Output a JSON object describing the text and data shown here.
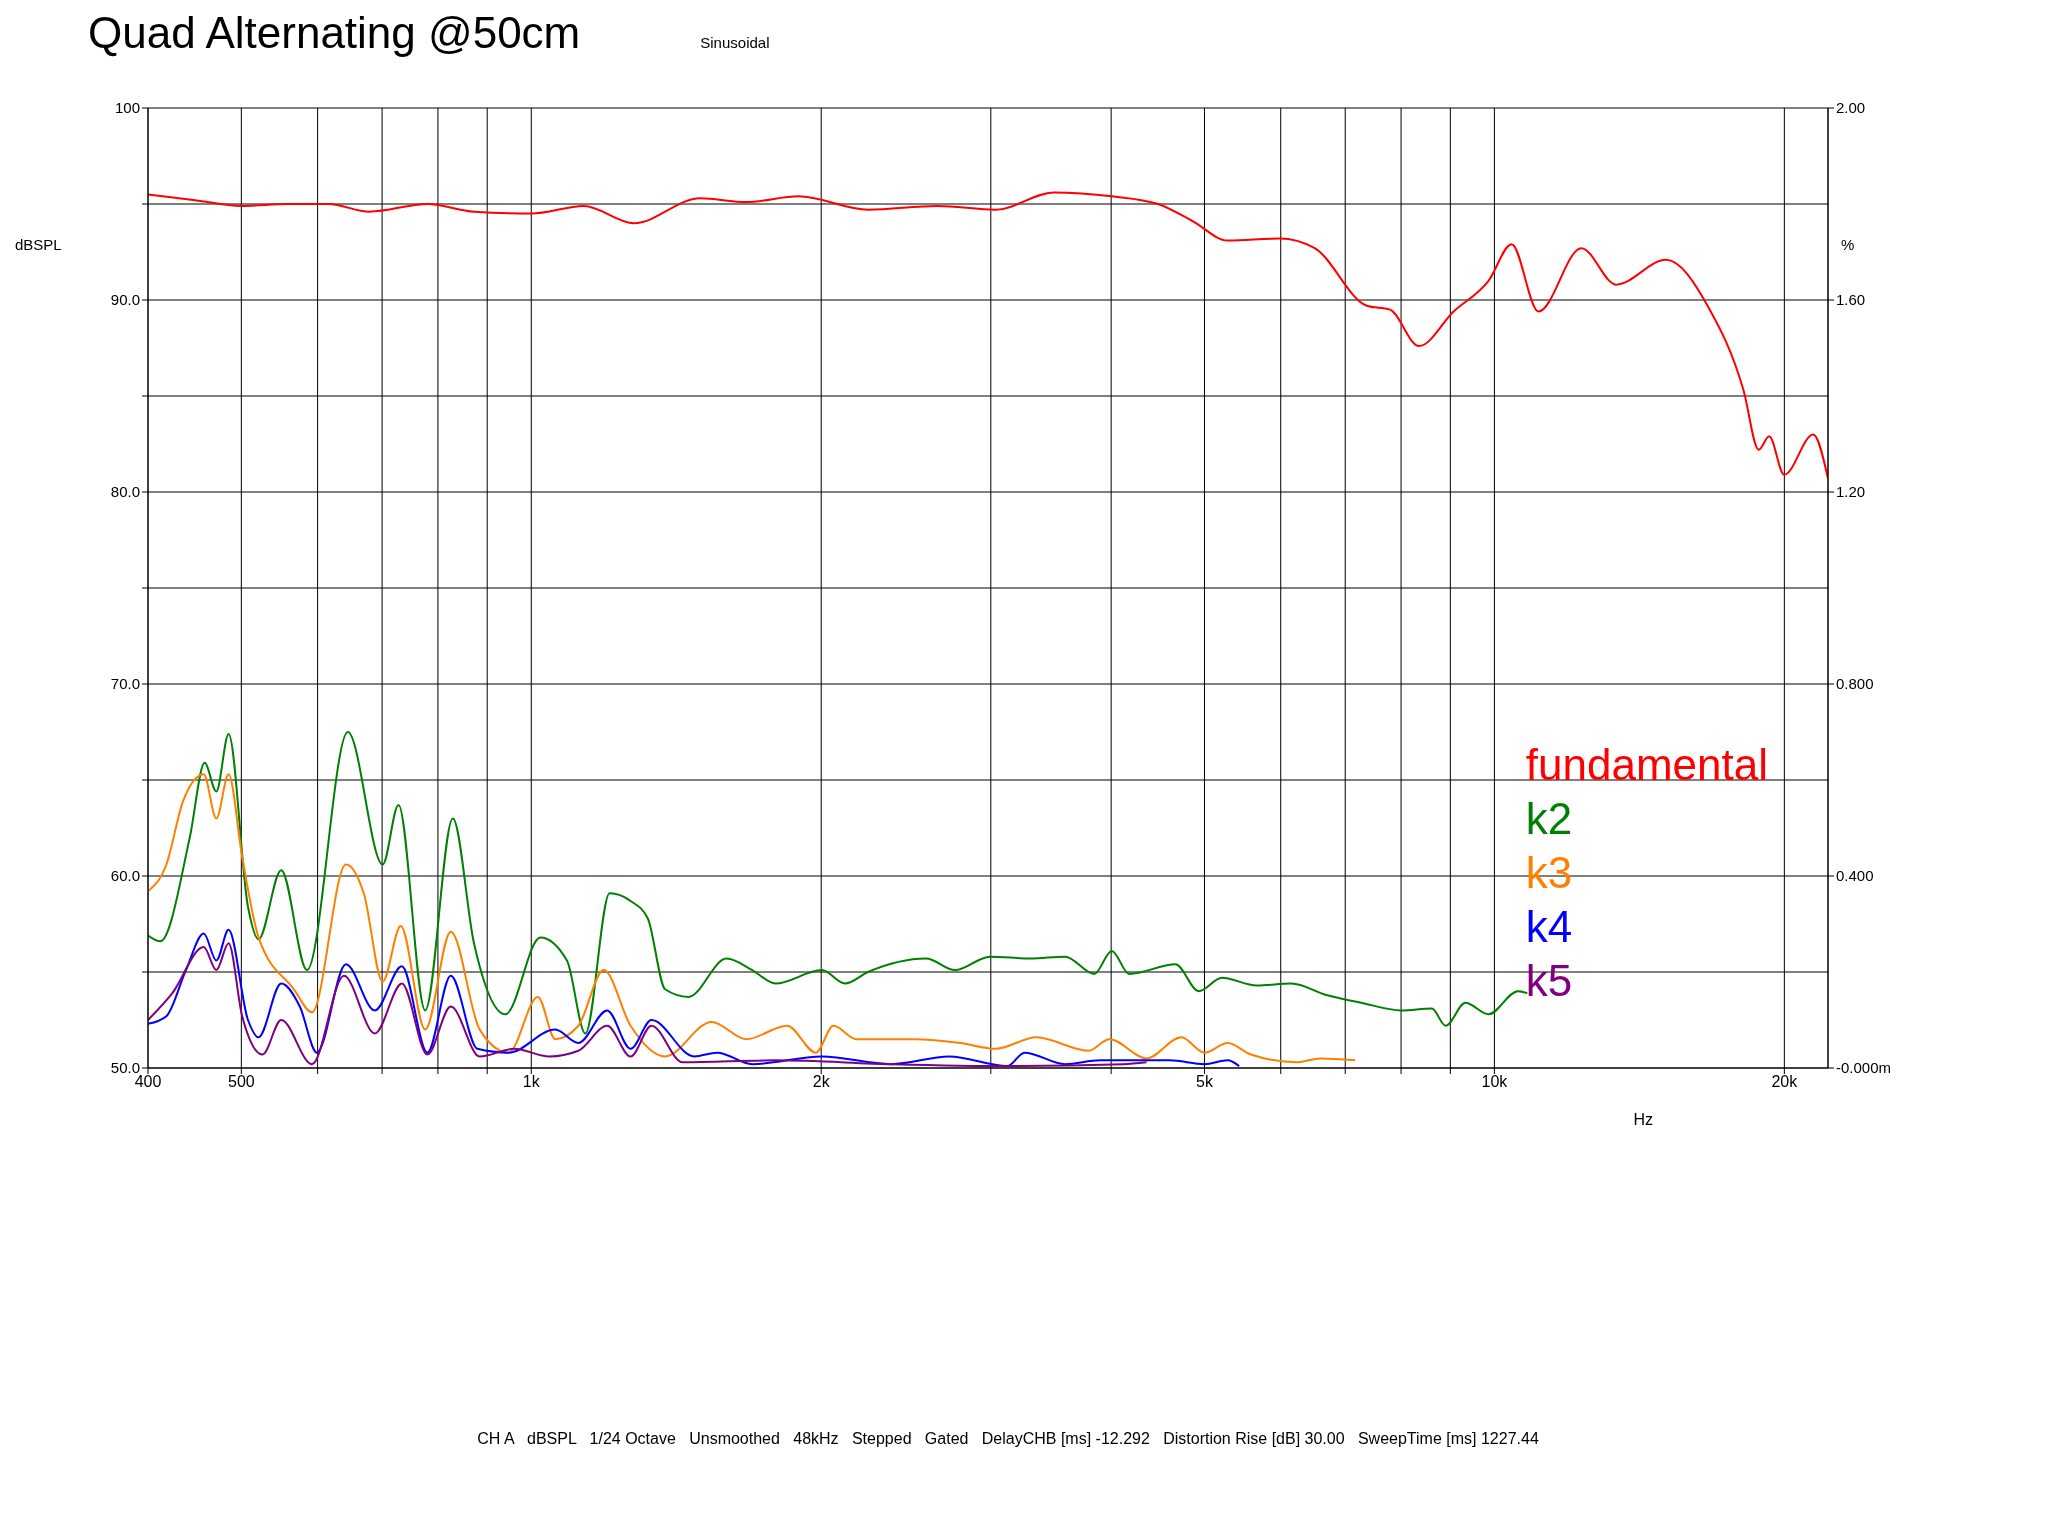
{
  "chart_data": {
    "type": "line",
    "title": "Quad Alternating @50cm",
    "xlabel": "Hz",
    "ylabel": "dBSPL",
    "y2label": "%",
    "annotations": [
      "Sinusoidal",
      "CH A   dBSPL   1/24 Octave   Unsmoothed   48kHz   Stepped   Gated   DelayCHB [ms] -12.292   Distortion Rise [dB] 30.00   SweepTime [ms] 1227.44"
    ],
    "log": "x",
    "grid": true,
    "legend": "right",
    "xlim": [
      400,
      22200
    ],
    "xticks": [
      400,
      500,
      {
        "value": 600,
        "label": null
      },
      {
        "value": 700,
        "label": null
      },
      {
        "value": 800,
        "label": null
      },
      {
        "value": 900,
        "label": null
      },
      {
        "value": 1000,
        "label": "1k"
      },
      {
        "value": 2000,
        "label": "2k"
      },
      {
        "value": 3000,
        "label": null
      },
      {
        "value": 4000,
        "label": null
      },
      {
        "value": 5000,
        "label": "5k"
      },
      {
        "value": 6000,
        "label": null
      },
      {
        "value": 7000,
        "label": null
      },
      {
        "value": 8000,
        "label": null
      },
      {
        "value": 9000,
        "label": null
      },
      {
        "value": 10000,
        "label": "10k"
      },
      {
        "value": 20000,
        "label": "20k"
      }
    ],
    "ylim": [
      50,
      100
    ],
    "yticks": [
      {
        "value": 50,
        "label": "50.0"
      },
      {
        "value": 55,
        "label": null
      },
      {
        "value": 60,
        "label": "60.0"
      },
      {
        "value": 65,
        "label": null
      },
      {
        "value": 70,
        "label": "70.0"
      },
      {
        "value": 75,
        "label": null
      },
      {
        "value": 80,
        "label": "80.0"
      },
      {
        "value": 85,
        "label": null
      },
      {
        "value": 90,
        "label": "90.0"
      },
      {
        "value": 95,
        "label": null
      },
      100
    ],
    "y2lim": [
      0,
      2
    ],
    "y2ticks": [
      {
        "value": 0,
        "label": "-0.000m"
      },
      {
        "value": 0.4,
        "label": "0.400"
      },
      {
        "value": 0.8,
        "label": "0.800"
      },
      {
        "value": 1.2,
        "label": "1.20"
      },
      {
        "value": 1.6,
        "label": "1.60"
      },
      {
        "value": 2,
        "label": "2.00"
      }
    ],
    "series": [
      {
        "name": "fundamental",
        "color": "#ff0000",
        "x": [
          400,
          448,
          500,
          559,
          616,
          679,
          780,
          872,
          1000,
          1134,
          1278,
          1497,
          1672,
          1895,
          2238,
          2642,
          3035,
          3487,
          4006,
          4475,
          4863,
          5285,
          5987,
          6507,
          7370,
          7790,
          8350,
          9070,
          9860,
          10420,
          11110,
          12310,
          13380,
          15070,
          16690,
          18140,
          18810,
          19290,
          19990,
          21430,
          22200
        ],
        "values": [
          95.5,
          95.2,
          94.9,
          95.0,
          95.0,
          94.6,
          95.0,
          94.6,
          94.5,
          94.9,
          94.0,
          95.3,
          95.1,
          95.4,
          94.7,
          94.9,
          94.7,
          95.6,
          95.4,
          95.0,
          94.1,
          93.1,
          93.2,
          92.7,
          89.7,
          89.5,
          87.6,
          89.4,
          91.0,
          92.9,
          89.4,
          92.7,
          90.8,
          92.1,
          89.6,
          85.3,
          82.2,
          82.9,
          80.9,
          83.0,
          80.7
        ]
      },
      {
        "name": "k2",
        "color": "#008000",
        "x": [
          400,
          412,
          442,
          458,
          471,
          485,
          508,
          521,
          550,
          585,
          645,
          701,
          728,
          776,
          829,
          872,
          940,
          1022,
          1089,
          1138,
          1206,
          1268,
          1321,
          1377,
          1456,
          1595,
          1696,
          1793,
          2003,
          2117,
          2237,
          2570,
          2754,
          2993,
          3298,
          3584,
          3842,
          4006,
          4176,
          4665,
          4932,
          5213,
          5664,
          6155,
          6690,
          7270,
          8010,
          8610,
          8900,
          9330,
          9860,
          10580,
          10820
        ],
        "values": [
          56.9,
          56.6,
          62.0,
          65.9,
          64.4,
          67.4,
          58.4,
          56.7,
          60.3,
          55.1,
          67.5,
          60.6,
          63.7,
          53.0,
          63.0,
          56.5,
          52.8,
          56.8,
          55.6,
          51.8,
          59.1,
          58.7,
          57.8,
          54.1,
          53.7,
          55.7,
          55.1,
          54.4,
          55.1,
          54.4,
          55.0,
          55.7,
          55.1,
          55.8,
          55.7,
          55.8,
          54.9,
          56.1,
          54.9,
          55.4,
          54.0,
          54.7,
          54.3,
          54.4,
          53.8,
          53.4,
          53.0,
          53.1,
          52.2,
          53.4,
          52.8,
          54.0,
          53.9
        ]
      },
      {
        "name": "k3",
        "color": "#ff8000",
        "x": [
          400,
          418,
          435,
          457,
          471,
          485,
          501,
          521,
          567,
          592,
          642,
          670,
          701,
          732,
          776,
          825,
          884,
          947,
          1016,
          1059,
          1119,
          1189,
          1268,
          1377,
          1539,
          1672,
          1843,
          1975,
          2059,
          2176,
          2501,
          2793,
          3035,
          3344,
          3789,
          3983,
          4353,
          4730,
          5001,
          5285,
          5586,
          6241,
          6598,
          7170
        ],
        "values": [
          59.2,
          60.6,
          63.9,
          65.3,
          63.0,
          65.3,
          61.0,
          56.8,
          54.1,
          52.9,
          60.6,
          59.1,
          54.5,
          57.4,
          52.0,
          57.1,
          52.0,
          50.8,
          53.7,
          51.5,
          52.2,
          55.1,
          52.2,
          50.6,
          52.4,
          51.5,
          52.2,
          50.8,
          52.2,
          51.5,
          51.5,
          51.3,
          51.0,
          51.6,
          50.9,
          51.5,
          50.5,
          51.6,
          50.8,
          51.3,
          50.7,
          50.3,
          50.5,
          50.4
        ]
      },
      {
        "name": "k4",
        "color": "#0000ff",
        "x": [
          400,
          418,
          438,
          457,
          471,
          485,
          508,
          521,
          550,
          575,
          599,
          642,
          688,
          734,
          780,
          825,
          879,
          947,
          1059,
          1119,
          1199,
          1268,
          1333,
          1476,
          1560,
          1696,
          2003,
          2365,
          2716,
          3121,
          3252,
          3584,
          3896,
          4601,
          5001,
          5285,
          5432
        ],
        "values": [
          52.3,
          52.7,
          55.1,
          57.0,
          55.6,
          57.2,
          52.5,
          51.6,
          54.4,
          53.2,
          50.8,
          55.4,
          53.0,
          55.3,
          50.8,
          54.8,
          51.0,
          50.8,
          52.0,
          51.3,
          53.0,
          51.0,
          52.5,
          50.6,
          50.8,
          50.2,
          50.6,
          50.2,
          50.6,
          50.1,
          50.8,
          50.2,
          50.4,
          50.4,
          50.2,
          50.4,
          50.1
        ]
      },
      {
        "name": "k5",
        "color": "#800080",
        "x": [
          400,
          424,
          457,
          471,
          485,
          501,
          526,
          550,
          592,
          639,
          688,
          734,
          780,
          825,
          884,
          960,
          1044,
          1119,
          1199,
          1268,
          1333,
          1436,
          1793,
          2365,
          3121,
          4120,
          4353
        ],
        "values": [
          52.5,
          53.9,
          56.3,
          55.1,
          56.5,
          52.7,
          50.7,
          52.5,
          50.2,
          54.8,
          51.8,
          54.4,
          50.7,
          53.2,
          50.6,
          51.0,
          50.6,
          50.9,
          52.2,
          50.6,
          52.2,
          50.3,
          50.4,
          50.2,
          50.1,
          50.2,
          50.3
        ]
      }
    ]
  }
}
